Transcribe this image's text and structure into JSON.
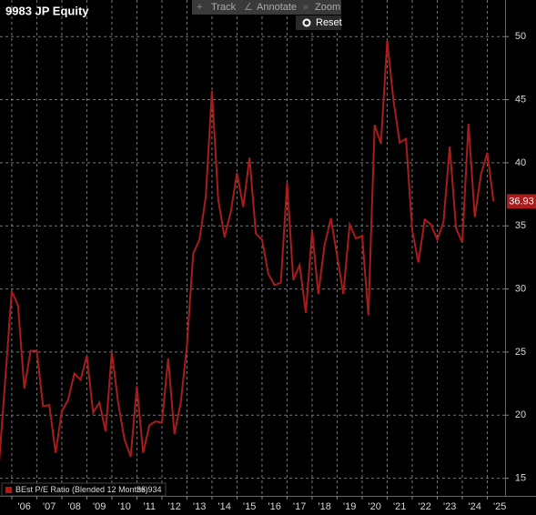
{
  "toolbar": {
    "buttons": [
      "Track",
      "Annotate",
      "Zoom"
    ],
    "reset": "Reset"
  },
  "chart_data": {
    "type": "line",
    "title": "9983 JP Equity",
    "x": [
      2005.5,
      2006,
      2006.25,
      2006.5,
      2006.75,
      2007,
      2007.25,
      2007.5,
      2007.75,
      2008,
      2008.25,
      2008.5,
      2008.75,
      2009,
      2009.25,
      2009.5,
      2009.75,
      2010,
      2010.25,
      2010.5,
      2010.75,
      2011,
      2011.25,
      2011.5,
      2011.75,
      2012,
      2012.25,
      2012.5,
      2012.75,
      2013,
      2013.25,
      2013.5,
      2013.75,
      2014,
      2014.25,
      2014.5,
      2014.75,
      2015,
      2015.25,
      2015.5,
      2015.75,
      2016,
      2016.25,
      2016.5,
      2016.75,
      2017,
      2017.25,
      2017.5,
      2017.75,
      2018,
      2018.25,
      2018.5,
      2018.75,
      2019,
      2019.25,
      2019.5,
      2019.75,
      2020,
      2020.25,
      2020.5,
      2020.75,
      2021,
      2021.25,
      2021.5,
      2021.75,
      2022,
      2022.25,
      2022.5,
      2022.75,
      2023,
      2023.25,
      2023.5,
      2023.75,
      2024,
      2024.25,
      2024.5,
      2024.75,
      2025,
      2025.25
    ],
    "series": [
      {
        "name": "BEst P/E Ratio (Blended 12 Months)",
        "color": "#a81c1c",
        "values": [
          16.4,
          29.8,
          28.7,
          22.1,
          25.1,
          25.1,
          20.7,
          20.8,
          17.0,
          20.3,
          21.2,
          23.3,
          22.8,
          24.7,
          20.2,
          21.0,
          18.7,
          25.0,
          21.0,
          18.1,
          16.7,
          22.3,
          17.0,
          19.2,
          19.5,
          19.4,
          24.5,
          18.5,
          21.0,
          25.5,
          32.8,
          33.9,
          37.3,
          45.7,
          37.1,
          34.1,
          36.1,
          39.2,
          36.5,
          40.4,
          34.4,
          33.9,
          31.2,
          30.3,
          30.5,
          38.4,
          30.7,
          31.9,
          28.1,
          34.6,
          29.6,
          33.5,
          35.6,
          32.6,
          29.6,
          35.1,
          34.0,
          34.2,
          27.9,
          43.0,
          41.5,
          49.7,
          45.0,
          41.6,
          41.9,
          34.6,
          32.1,
          35.5,
          35.1,
          33.9,
          35.3,
          41.3,
          34.8,
          33.7,
          43.1,
          35.7,
          39.1,
          40.8,
          36.934
        ],
        "value_labels": [
          null,
          null,
          null,
          null,
          null,
          null,
          null,
          null,
          null,
          null,
          null,
          null,
          null,
          null,
          null,
          null,
          null,
          null,
          null,
          null,
          null,
          null,
          null,
          null,
          null,
          null,
          null,
          null,
          null,
          null,
          null,
          null,
          null,
          null,
          null,
          null,
          null,
          null,
          null,
          null,
          null,
          null,
          null,
          null,
          null,
          null,
          null,
          null,
          null,
          null,
          null,
          null,
          null,
          null,
          null,
          null,
          null,
          null,
          null,
          null,
          null,
          null,
          null,
          null,
          null,
          null,
          null,
          null,
          null,
          null,
          null,
          null,
          null,
          null,
          null,
          null,
          null,
          null,
          "36.93"
        ]
      }
    ],
    "xlim": [
      2005.53,
      2025.71
    ],
    "xticks": [
      {
        "value": 2006,
        "label": "'06"
      },
      {
        "value": 2007,
        "label": "'07"
      },
      {
        "value": 2008,
        "label": "'08"
      },
      {
        "value": 2009,
        "label": "'09"
      },
      {
        "value": 2010,
        "label": "'10"
      },
      {
        "value": 2011,
        "label": "'11"
      },
      {
        "value": 2012,
        "label": "'12"
      },
      {
        "value": 2013,
        "label": "'13"
      },
      {
        "value": 2014,
        "label": "'14"
      },
      {
        "value": 2015,
        "label": "'15"
      },
      {
        "value": 2016,
        "label": "'16"
      },
      {
        "value": 2017,
        "label": "'17"
      },
      {
        "value": 2018,
        "label": "'18"
      },
      {
        "value": 2019,
        "label": "'19"
      },
      {
        "value": 2020,
        "label": "'20"
      },
      {
        "value": 2021,
        "label": "'21"
      },
      {
        "value": 2022,
        "label": "'22"
      },
      {
        "value": 2023,
        "label": "'23"
      },
      {
        "value": 2024,
        "label": "'24"
      },
      {
        "value": 2025,
        "label": "'25"
      }
    ],
    "ylim": [
      13.6,
      52.9
    ],
    "yticks": [
      15,
      20,
      25,
      30,
      35,
      40,
      45,
      50
    ],
    "grid": true
  }
}
